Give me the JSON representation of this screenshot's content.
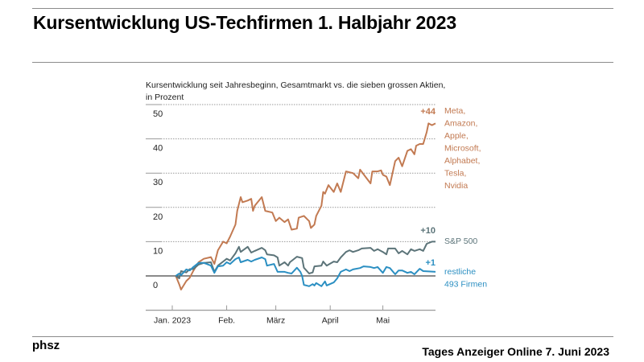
{
  "slide": {
    "title": "Kursentwicklung US-Techfirmen  1. Halbjahr 2023",
    "source_left": "phsz",
    "source_right": "Tages Anzeiger Online 7. Juni 2023"
  },
  "chart_data": {
    "type": "line",
    "title": "Kursentwicklung seit Jahresbeginn, Gesamtmarkt vs. die sieben grossen Aktien,",
    "subtitle": "in Prozent",
    "ylim": [
      -10,
      50
    ],
    "yticks": [
      0,
      10,
      20,
      30,
      40,
      50
    ],
    "ytick_labels": [
      "0",
      "10",
      "20",
      "30",
      "40",
      "50"
    ],
    "xlim": [
      "2023-01-01",
      "2023-05-31"
    ],
    "xticks": [
      "2023-01-01",
      "2023-02-01",
      "2023-03-01",
      "2023-04-01",
      "2023-05-01"
    ],
    "xtick_labels": [
      "Jan. 2023",
      "Feb.",
      "März",
      "April",
      "Mai"
    ],
    "grid": "horizontal dotted",
    "series": [
      {
        "name_lines": [
          "Meta,",
          "Amazon,",
          "Apple,",
          "Microsoft,",
          "Alphabet,",
          "Tesla,",
          "Nvidia"
        ],
        "end_label": "+44",
        "color": "#c27a52",
        "points": [
          [
            "01-03",
            0
          ],
          [
            "01-05",
            -2.5
          ],
          [
            "01-06",
            -4
          ],
          [
            "01-09",
            -1.5
          ],
          [
            "01-11",
            -0.5
          ],
          [
            "01-13",
            1.5
          ],
          [
            "01-16",
            4
          ],
          [
            "01-19",
            5
          ],
          [
            "01-23",
            5.5
          ],
          [
            "01-25",
            3.5
          ],
          [
            "01-27",
            7.5
          ],
          [
            "01-30",
            10
          ],
          [
            "02-01",
            9.5
          ],
          [
            "02-03",
            11.5
          ],
          [
            "02-06",
            15
          ],
          [
            "02-07",
            19
          ],
          [
            "02-09",
            23
          ],
          [
            "02-10",
            21.5
          ],
          [
            "02-13",
            22
          ],
          [
            "02-15",
            22.5
          ],
          [
            "02-16",
            19
          ],
          [
            "02-17",
            20.5
          ],
          [
            "02-21",
            23
          ],
          [
            "02-23",
            19
          ],
          [
            "02-27",
            18.5
          ],
          [
            "03-01",
            16
          ],
          [
            "03-03",
            17
          ],
          [
            "03-06",
            15.7
          ],
          [
            "03-08",
            16.5
          ],
          [
            "03-10",
            13.5
          ],
          [
            "03-13",
            13.8
          ],
          [
            "03-14",
            17
          ],
          [
            "03-17",
            17.5
          ],
          [
            "03-20",
            16
          ],
          [
            "03-21",
            14
          ],
          [
            "03-23",
            15
          ],
          [
            "03-24",
            17.5
          ],
          [
            "03-27",
            20.5
          ],
          [
            "03-28",
            24.5
          ],
          [
            "03-29",
            24
          ],
          [
            "03-31",
            26.5
          ],
          [
            "04-03",
            24.5
          ],
          [
            "04-05",
            27
          ],
          [
            "04-07",
            24.5
          ],
          [
            "04-10",
            30.5
          ],
          [
            "04-14",
            30
          ],
          [
            "04-17",
            28.5
          ],
          [
            "04-18",
            31
          ],
          [
            "04-21",
            29
          ],
          [
            "04-24",
            27
          ],
          [
            "04-25",
            30.5
          ],
          [
            "04-28",
            30.5
          ],
          [
            "04-30",
            30.8
          ],
          [
            "05-01",
            29.5
          ],
          [
            "05-03",
            29
          ],
          [
            "05-05",
            26.5
          ],
          [
            "05-08",
            33.5
          ],
          [
            "05-10",
            34.5
          ],
          [
            "05-12",
            32
          ],
          [
            "05-15",
            36.5
          ],
          [
            "05-17",
            37
          ],
          [
            "05-19",
            35.5
          ],
          [
            "05-20",
            38
          ],
          [
            "05-22",
            38.5
          ],
          [
            "05-24",
            38.5
          ],
          [
            "05-26",
            42
          ],
          [
            "05-27",
            44.5
          ],
          [
            "05-29",
            44
          ],
          [
            "05-31",
            44.5
          ]
        ]
      },
      {
        "name_lines": [
          "S&P 500"
        ],
        "end_label": "+10",
        "color": "#5c7479",
        "points": [
          [
            "01-03",
            0
          ],
          [
            "01-05",
            -0.7
          ],
          [
            "01-06",
            1.4
          ],
          [
            "01-09",
            1
          ],
          [
            "01-11",
            2
          ],
          [
            "01-13",
            2
          ],
          [
            "01-16",
            3.3
          ],
          [
            "01-19",
            3.8
          ],
          [
            "01-23",
            4
          ],
          [
            "01-25",
            1.2
          ],
          [
            "01-27",
            3
          ],
          [
            "01-30",
            4.2
          ],
          [
            "02-01",
            5
          ],
          [
            "02-03",
            4.5
          ],
          [
            "02-06",
            6.6
          ],
          [
            "02-08",
            8.5
          ],
          [
            "02-09",
            7
          ],
          [
            "02-13",
            8.5
          ],
          [
            "02-15",
            6.8
          ],
          [
            "02-17",
            7.3
          ],
          [
            "02-21",
            8.2
          ],
          [
            "02-23",
            7.5
          ],
          [
            "02-24",
            6.3
          ],
          [
            "02-28",
            6
          ],
          [
            "03-02",
            5.4
          ],
          [
            "03-03",
            3
          ],
          [
            "03-06",
            4
          ],
          [
            "03-08",
            3
          ],
          [
            "03-09",
            4
          ],
          [
            "03-13",
            5.6
          ],
          [
            "03-16",
            5.2
          ],
          [
            "03-17",
            2.4
          ],
          [
            "03-20",
            0.7
          ],
          [
            "03-22",
            1
          ],
          [
            "03-23",
            2.8
          ],
          [
            "03-27",
            3
          ],
          [
            "03-28",
            4.2
          ],
          [
            "03-30",
            3
          ],
          [
            "04-03",
            4.2
          ],
          [
            "04-05",
            4
          ],
          [
            "04-07",
            5.4
          ],
          [
            "04-10",
            7
          ],
          [
            "04-12",
            7.5
          ],
          [
            "04-14",
            7
          ],
          [
            "04-17",
            7.5
          ],
          [
            "04-19",
            8
          ],
          [
            "04-24",
            8.2
          ],
          [
            "04-26",
            7.3
          ],
          [
            "04-28",
            7.8
          ],
          [
            "05-01",
            7
          ],
          [
            "05-03",
            6.3
          ],
          [
            "05-04",
            8
          ],
          [
            "05-08",
            8
          ],
          [
            "05-10",
            6.6
          ],
          [
            "05-12",
            7.3
          ],
          [
            "05-15",
            6.3
          ],
          [
            "05-17",
            7.8
          ],
          [
            "05-19",
            7.3
          ],
          [
            "05-22",
            7.8
          ],
          [
            "05-24",
            7.3
          ],
          [
            "05-26",
            9.4
          ],
          [
            "05-29",
            10
          ],
          [
            "05-31",
            10
          ]
        ]
      },
      {
        "name_lines": [
          "restliche",
          "493 Firmen"
        ],
        "end_label": "+1",
        "color": "#2b8fc2",
        "points": [
          [
            "01-03",
            0
          ],
          [
            "01-05",
            0.7
          ],
          [
            "01-06",
            0.2
          ],
          [
            "01-09",
            1.9
          ],
          [
            "01-11",
            1.6
          ],
          [
            "01-13",
            2.6
          ],
          [
            "01-16",
            3.8
          ],
          [
            "01-19",
            3.8
          ],
          [
            "01-23",
            3
          ],
          [
            "01-25",
            0.9
          ],
          [
            "01-27",
            2.8
          ],
          [
            "01-30",
            3
          ],
          [
            "02-01",
            4
          ],
          [
            "02-03",
            3.5
          ],
          [
            "02-06",
            4.9
          ],
          [
            "02-08",
            5.4
          ],
          [
            "02-09",
            4
          ],
          [
            "02-13",
            4.7
          ],
          [
            "02-15",
            4.2
          ],
          [
            "02-17",
            4.7
          ],
          [
            "02-21",
            5.4
          ],
          [
            "02-23",
            4.9
          ],
          [
            "02-24",
            3
          ],
          [
            "02-28",
            3.5
          ],
          [
            "03-02",
            1.2
          ],
          [
            "03-06",
            1.2
          ],
          [
            "03-08",
            0.9
          ],
          [
            "03-10",
            0.7
          ],
          [
            "03-13",
            2.4
          ],
          [
            "03-15",
            1.2
          ],
          [
            "03-16",
            0
          ],
          [
            "03-17",
            -2.6
          ],
          [
            "03-20",
            -3
          ],
          [
            "03-22",
            -2.4
          ],
          [
            "03-23",
            -2.8
          ],
          [
            "03-24",
            -2.1
          ],
          [
            "03-27",
            -3
          ],
          [
            "03-29",
            -1.6
          ],
          [
            "03-30",
            -2.8
          ],
          [
            "04-03",
            -1.9
          ],
          [
            "04-05",
            -0.7
          ],
          [
            "04-07",
            1.2
          ],
          [
            "04-10",
            1.9
          ],
          [
            "04-12",
            1.4
          ],
          [
            "04-14",
            1.9
          ],
          [
            "04-18",
            2.3
          ],
          [
            "04-20",
            2.8
          ],
          [
            "04-24",
            2.6
          ],
          [
            "04-26",
            2.3
          ],
          [
            "04-28",
            2.6
          ],
          [
            "05-01",
            0.9
          ],
          [
            "05-03",
            2.6
          ],
          [
            "05-05",
            2.3
          ],
          [
            "05-08",
            0.5
          ],
          [
            "05-10",
            1.6
          ],
          [
            "05-12",
            1.6
          ],
          [
            "05-15",
            0.9
          ],
          [
            "05-17",
            1.2
          ],
          [
            "05-19",
            0.5
          ],
          [
            "05-22",
            2.1
          ],
          [
            "05-24",
            1.4
          ],
          [
            "05-31",
            1.2
          ]
        ]
      }
    ]
  }
}
